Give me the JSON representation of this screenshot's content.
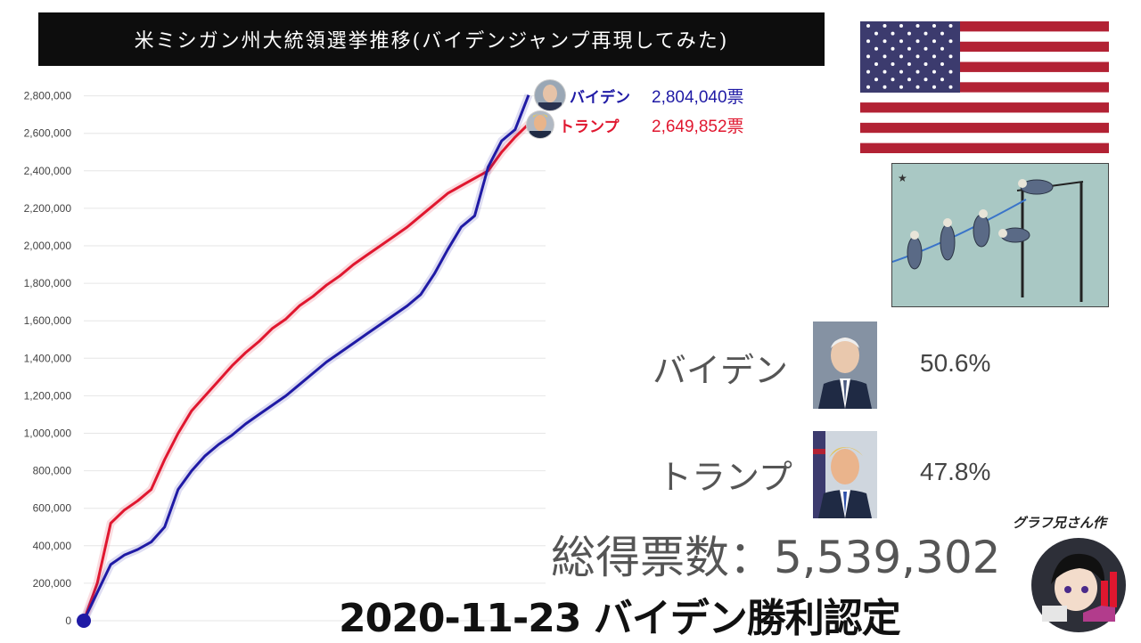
{
  "title": "米ミシガン州大統領選挙推移(バイデンジャンプ再現してみた)",
  "colors": {
    "biden": "#1f1aa5",
    "trump": "#e0172f",
    "flag_red": "#b22234",
    "flag_blue": "#3c3b6e"
  },
  "chart_data": {
    "type": "line",
    "ylim": [
      0,
      2900000
    ],
    "y_ticks": [
      "0",
      "200,000",
      "400,000",
      "600,000",
      "800,000",
      "1,000,000",
      "1,200,000",
      "1,400,000",
      "1,600,000",
      "1,800,000",
      "2,000,000",
      "2,200,000",
      "2,400,000",
      "2,600,000",
      "2,800,000"
    ],
    "grid": true,
    "series": [
      {
        "name": "バイデン",
        "color": "#1f1aa5",
        "values": [
          0,
          150000,
          300000,
          350000,
          380000,
          420000,
          500000,
          700000,
          800000,
          880000,
          940000,
          990000,
          1050000,
          1100000,
          1150000,
          1200000,
          1260000,
          1320000,
          1380000,
          1430000,
          1480000,
          1530000,
          1580000,
          1630000,
          1680000,
          1740000,
          1850000,
          1980000,
          2100000,
          2160000,
          2420000,
          2560000,
          2620000,
          2804040
        ]
      },
      {
        "name": "トランプ",
        "color": "#e0172f",
        "values": [
          0,
          200000,
          520000,
          590000,
          640000,
          700000,
          860000,
          1000000,
          1120000,
          1200000,
          1280000,
          1360000,
          1430000,
          1490000,
          1560000,
          1610000,
          1680000,
          1730000,
          1790000,
          1840000,
          1900000,
          1950000,
          2000000,
          2050000,
          2100000,
          2160000,
          2220000,
          2280000,
          2320000,
          2360000,
          2400000,
          2500000,
          2580000,
          2649852
        ]
      }
    ],
    "end_labels": [
      {
        "name": "バイデン",
        "value": "2,804,040票"
      },
      {
        "name": "トランプ",
        "value": "2,649,852票"
      }
    ]
  },
  "candidates": [
    {
      "name": "バイデン",
      "pct": "50.6%"
    },
    {
      "name": "トランプ",
      "pct": "47.8%"
    }
  ],
  "total_votes": "総得票数：5,539,302",
  "footer": "2020-11-23 バイデン勝利認定",
  "credit": "グラフ兄さん作"
}
